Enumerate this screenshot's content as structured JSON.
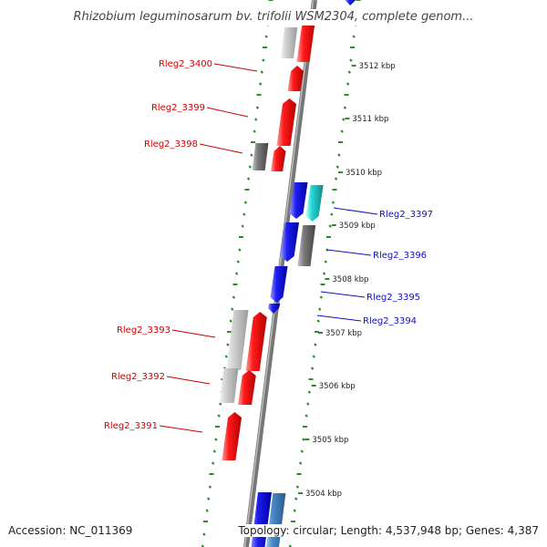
{
  "title": "Rhizobium leguminosarum bv. trifolii WSM2304, complete genom...",
  "footer": {
    "accession": "Accession: NC_011369",
    "info": "Topology: circular; Length: 4,537,948 bp; Genes: 4,387"
  },
  "colors": {
    "forward_gene": "#ff1111",
    "reverse_gene": "#2020ee",
    "cyan_gene": "#22cccc",
    "steelblue_gene": "#4a8acb",
    "gray_gene": "#777777",
    "lightgray_gene": "#c0c0c0",
    "backbone": "#888888",
    "dotted_guide": "#2d8a2d",
    "label_forward": "#cc0000",
    "label_reverse": "#1010bb"
  },
  "scale_labels": [
    "3512 kbp",
    "3511 kbp",
    "3510 kbp",
    "3509 kbp",
    "3508 kbp",
    "3507 kbp",
    "3506 kbp",
    "3505 kbp",
    "3504 kbp"
  ],
  "gene_labels": [
    {
      "text": "Rleg2_3400",
      "side": "left"
    },
    {
      "text": "Rleg2_3399",
      "side": "left"
    },
    {
      "text": "Rleg2_3398",
      "side": "left"
    },
    {
      "text": "Rleg2_3397",
      "side": "right"
    },
    {
      "text": "Rleg2_3396",
      "side": "right"
    },
    {
      "text": "Rleg2_3395",
      "side": "right"
    },
    {
      "text": "Rleg2_3394",
      "side": "right"
    },
    {
      "text": "Rleg2_3393",
      "side": "left"
    },
    {
      "text": "Rleg2_3392",
      "side": "left"
    },
    {
      "text": "Rleg2_3391",
      "side": "left"
    }
  ]
}
